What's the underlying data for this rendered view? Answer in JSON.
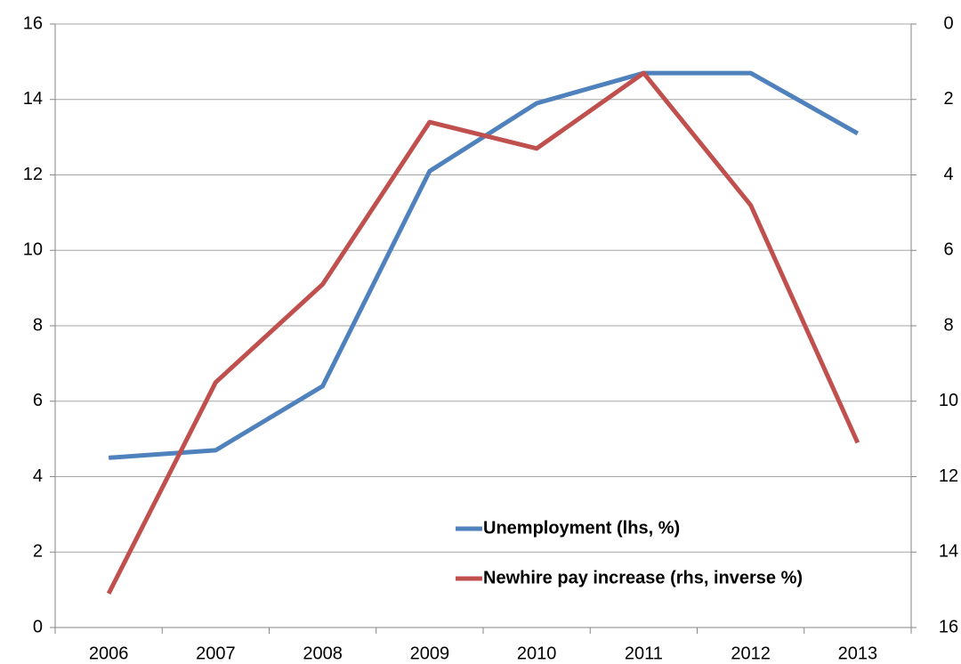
{
  "chart_data": {
    "type": "line",
    "categories": [
      "2006",
      "2007",
      "2008",
      "2009",
      "2010",
      "2011",
      "2012",
      "2013"
    ],
    "series": [
      {
        "name": "Unemployment (lhs, %)",
        "color": "#4f81bd",
        "values": [
          4.5,
          4.7,
          6.4,
          12.1,
          13.9,
          14.7,
          14.7,
          13.1
        ]
      },
      {
        "name": "Newhire pay increase (rhs, inverse %)",
        "color": "#c0504d",
        "axis": "y2",
        "values": [
          15.1,
          9.5,
          6.9,
          2.6,
          3.3,
          1.3,
          4.8,
          11.1
        ]
      }
    ],
    "ylim": [
      0,
      16
    ],
    "yticks": [
      0,
      2,
      4,
      6,
      8,
      10,
      12,
      14,
      16
    ],
    "y2lim": [
      0,
      16
    ],
    "y2ticks": [
      0,
      2,
      4,
      6,
      8,
      10,
      12,
      14,
      16
    ],
    "y2_inverted": true,
    "grid": true
  }
}
